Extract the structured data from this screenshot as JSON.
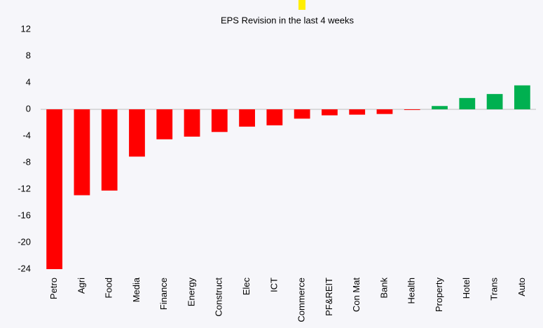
{
  "chart_data": {
    "type": "bar",
    "title": "EPS Revision in the last 4 weeks",
    "categories": [
      "Petro",
      "Agri",
      "Food",
      "Media",
      "Finance",
      "Energy",
      "Construct",
      "Elec",
      "ICT",
      "Commerce",
      "PF&REIT",
      "Con Mat",
      "Bank",
      "Health",
      "Property",
      "Hotel",
      "Trans",
      "Auto"
    ],
    "values": [
      -24,
      -12.9,
      -12.2,
      -7.1,
      -4.5,
      -4.1,
      -3.4,
      -2.6,
      -2.4,
      -1.4,
      -0.9,
      -0.8,
      -0.7,
      -0.1,
      0.5,
      1.7,
      2.3,
      3.6
    ],
    "positive_color": "#00b050",
    "negative_color": "#ff0000",
    "ylim": [
      -24,
      12
    ],
    "yticks": [
      -24,
      -20,
      -16,
      -12,
      -8,
      -4,
      0,
      4,
      8,
      12
    ],
    "grid": false
  }
}
